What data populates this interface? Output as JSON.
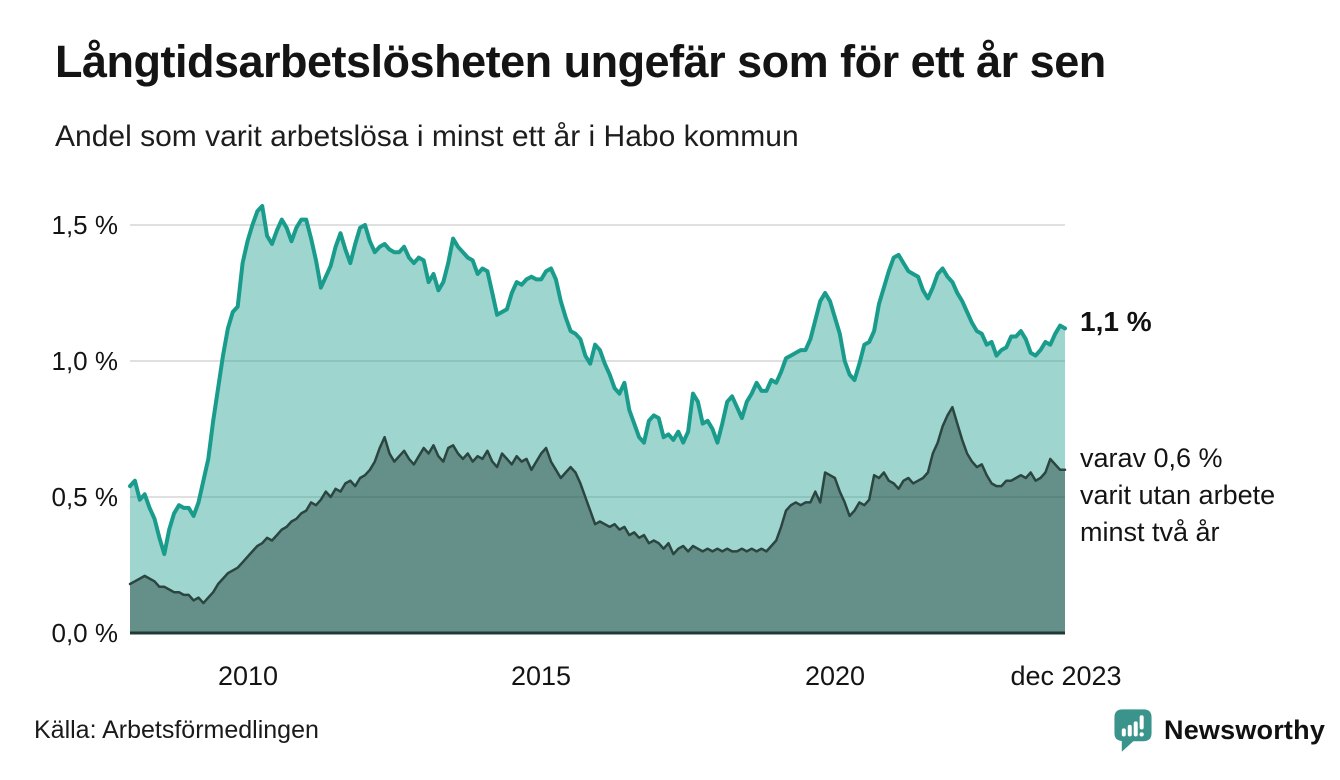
{
  "header": {
    "title": "Långtidsarbetslösheten ungefär som för ett år sen",
    "subtitle": "Andel som varit arbetslösa i minst ett år i Habo kommun"
  },
  "chart_data": {
    "type": "area",
    "title": "Långtidsarbetslösheten ungefär som för ett år sen",
    "subtitle": "Andel som varit arbetslösa i minst ett år i Habo kommun",
    "unit": "%",
    "x_monthly_start": "2008-01",
    "x_monthly_end": "2023-12",
    "x_tick_labels": [
      "2010",
      "2015",
      "2020",
      "dec 2023"
    ],
    "y_tick_labels": [
      "0,0 %",
      "0,5 %",
      "1,0 %",
      "1,5 %"
    ],
    "y_ticks": [
      0,
      0.5,
      1.0,
      1.5
    ],
    "ylim": [
      0,
      1.65
    ],
    "grid": "horizontal",
    "legend_position": "right-edge-annotations",
    "series": [
      {
        "name": "Andel arbetslösa minst ett år",
        "line_color": "#1a9c8c",
        "fill_color": "rgba(26,156,140,0.42)",
        "last_value": 1.1,
        "values": [
          0.54,
          0.56,
          0.49,
          0.51,
          0.46,
          0.42,
          0.35,
          0.29,
          0.38,
          0.44,
          0.47,
          0.46,
          0.46,
          0.43,
          0.48,
          0.56,
          0.64,
          0.78,
          0.9,
          1.02,
          1.12,
          1.18,
          1.2,
          1.36,
          1.44,
          1.5,
          1.55,
          1.57,
          1.46,
          1.43,
          1.48,
          1.52,
          1.49,
          1.44,
          1.49,
          1.52,
          1.52,
          1.45,
          1.37,
          1.27,
          1.31,
          1.35,
          1.42,
          1.47,
          1.41,
          1.36,
          1.43,
          1.49,
          1.5,
          1.44,
          1.4,
          1.42,
          1.43,
          1.41,
          1.4,
          1.4,
          1.42,
          1.38,
          1.36,
          1.38,
          1.37,
          1.29,
          1.32,
          1.26,
          1.29,
          1.36,
          1.45,
          1.42,
          1.4,
          1.38,
          1.37,
          1.32,
          1.34,
          1.33,
          1.25,
          1.17,
          1.18,
          1.19,
          1.25,
          1.29,
          1.28,
          1.3,
          1.31,
          1.3,
          1.3,
          1.33,
          1.34,
          1.3,
          1.22,
          1.16,
          1.11,
          1.1,
          1.08,
          1.02,
          0.99,
          1.06,
          1.04,
          0.99,
          0.95,
          0.9,
          0.88,
          0.92,
          0.82,
          0.77,
          0.72,
          0.7,
          0.78,
          0.8,
          0.79,
          0.72,
          0.73,
          0.71,
          0.74,
          0.7,
          0.74,
          0.88,
          0.85,
          0.77,
          0.78,
          0.75,
          0.7,
          0.77,
          0.85,
          0.87,
          0.83,
          0.79,
          0.85,
          0.88,
          0.92,
          0.89,
          0.89,
          0.93,
          0.92,
          0.96,
          1.01,
          1.02,
          1.03,
          1.04,
          1.04,
          1.08,
          1.15,
          1.22,
          1.25,
          1.22,
          1.16,
          1.1,
          1.0,
          0.95,
          0.93,
          0.99,
          1.06,
          1.07,
          1.11,
          1.21,
          1.27,
          1.33,
          1.38,
          1.39,
          1.36,
          1.33,
          1.32,
          1.31,
          1.26,
          1.23,
          1.27,
          1.32,
          1.34,
          1.31,
          1.29,
          1.25,
          1.22,
          1.18,
          1.14,
          1.11,
          1.1,
          1.06,
          1.07,
          1.02,
          1.04,
          1.05,
          1.09,
          1.09,
          1.11,
          1.08,
          1.03,
          1.02,
          1.04,
          1.07,
          1.06,
          1.1,
          1.13,
          1.12
        ]
      },
      {
        "name": "varav utan arbete minst två år",
        "line_color": "#2b4641",
        "fill_color": "rgba(38,66,61,0.48)",
        "last_value": 0.6,
        "values": [
          0.18,
          0.19,
          0.2,
          0.21,
          0.2,
          0.19,
          0.17,
          0.17,
          0.16,
          0.15,
          0.15,
          0.14,
          0.14,
          0.12,
          0.13,
          0.11,
          0.13,
          0.15,
          0.18,
          0.2,
          0.22,
          0.23,
          0.24,
          0.26,
          0.28,
          0.3,
          0.32,
          0.33,
          0.35,
          0.34,
          0.36,
          0.38,
          0.39,
          0.41,
          0.42,
          0.44,
          0.45,
          0.48,
          0.47,
          0.49,
          0.52,
          0.5,
          0.53,
          0.52,
          0.55,
          0.56,
          0.54,
          0.57,
          0.58,
          0.6,
          0.63,
          0.68,
          0.72,
          0.66,
          0.63,
          0.65,
          0.67,
          0.64,
          0.62,
          0.65,
          0.68,
          0.66,
          0.69,
          0.65,
          0.63,
          0.68,
          0.69,
          0.66,
          0.64,
          0.66,
          0.63,
          0.65,
          0.64,
          0.67,
          0.63,
          0.61,
          0.66,
          0.64,
          0.62,
          0.65,
          0.63,
          0.64,
          0.6,
          0.63,
          0.66,
          0.68,
          0.63,
          0.6,
          0.57,
          0.59,
          0.61,
          0.59,
          0.55,
          0.5,
          0.45,
          0.4,
          0.41,
          0.4,
          0.39,
          0.4,
          0.38,
          0.39,
          0.36,
          0.37,
          0.35,
          0.36,
          0.33,
          0.34,
          0.33,
          0.31,
          0.33,
          0.29,
          0.31,
          0.32,
          0.3,
          0.32,
          0.31,
          0.3,
          0.31,
          0.3,
          0.31,
          0.3,
          0.31,
          0.3,
          0.3,
          0.31,
          0.3,
          0.31,
          0.3,
          0.31,
          0.3,
          0.32,
          0.34,
          0.39,
          0.45,
          0.47,
          0.48,
          0.47,
          0.48,
          0.48,
          0.52,
          0.48,
          0.59,
          0.58,
          0.57,
          0.52,
          0.48,
          0.43,
          0.45,
          0.48,
          0.47,
          0.49,
          0.58,
          0.57,
          0.59,
          0.56,
          0.55,
          0.53,
          0.56,
          0.57,
          0.55,
          0.56,
          0.57,
          0.59,
          0.66,
          0.7,
          0.76,
          0.8,
          0.83,
          0.77,
          0.71,
          0.66,
          0.63,
          0.61,
          0.62,
          0.58,
          0.55,
          0.54,
          0.54,
          0.56,
          0.56,
          0.57,
          0.58,
          0.57,
          0.59,
          0.56,
          0.57,
          0.59,
          0.64,
          0.62,
          0.6,
          0.6
        ]
      }
    ],
    "end_labels": {
      "primary": "1,1 %",
      "secondary": [
        "varav 0,6 %",
        "varit utan arbete",
        "minst två år"
      ]
    },
    "colors": {
      "gridline": "#d6d6d6",
      "baseline": "#203b37"
    }
  },
  "source": "Källa: Arbetsförmedlingen",
  "branding": {
    "name": "Newsworthy",
    "color": "#3a948b"
  }
}
